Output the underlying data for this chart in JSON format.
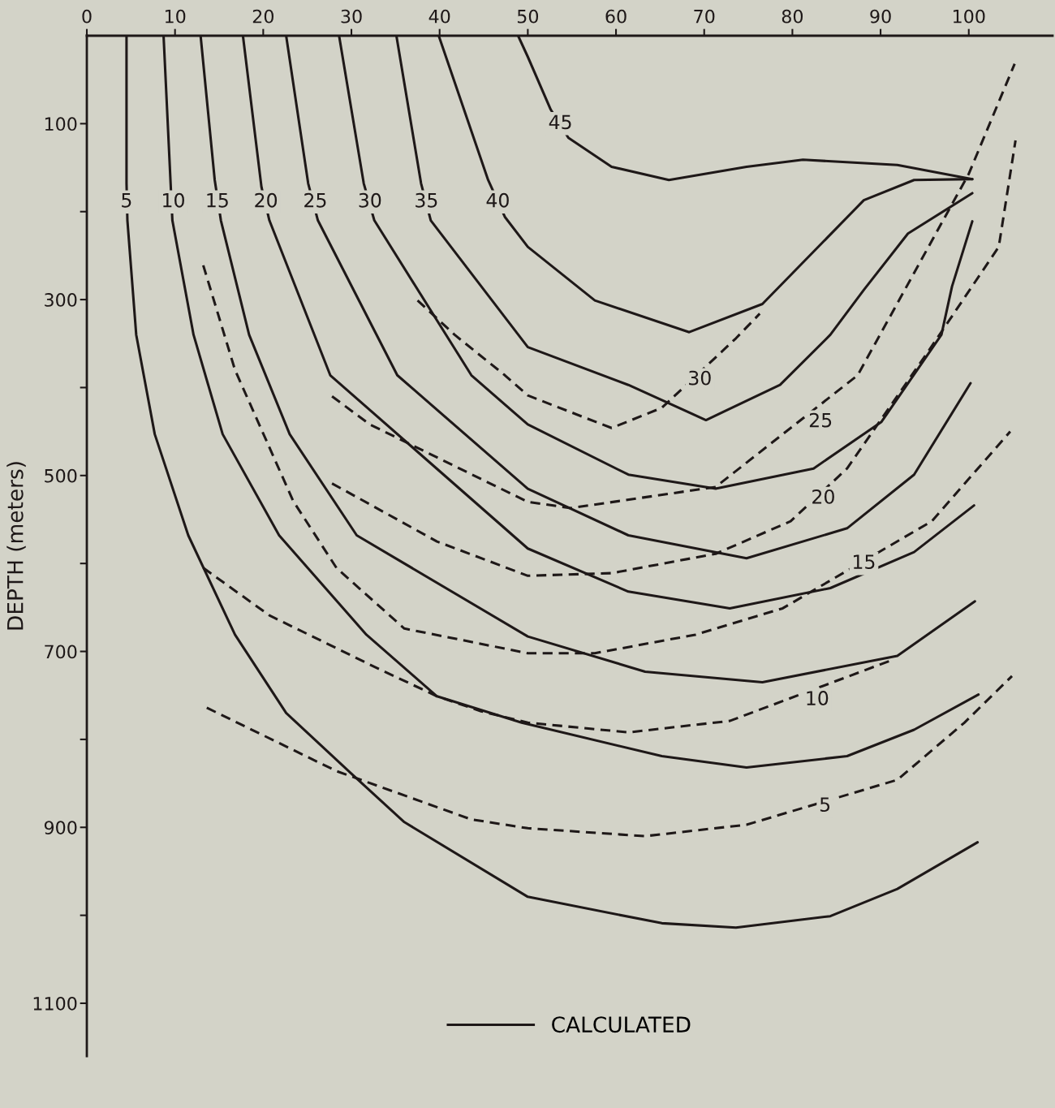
{
  "chart_data": {
    "type": "line",
    "ylabel": "DEPTH (meters)",
    "xlim": [
      0,
      109.5
    ],
    "xticks": [
      0,
      10,
      20,
      30,
      40,
      50,
      60,
      70,
      80,
      90,
      100
    ],
    "ylim": [
      1160,
      0
    ],
    "yticks": [
      100,
      {
        "value": 200,
        "label": null
      },
      300,
      {
        "value": 400,
        "label": null
      },
      500,
      {
        "value": 600,
        "label": null
      },
      700,
      {
        "value": 800,
        "label": null
      },
      900,
      {
        "value": 1000,
        "label": null
      },
      1100
    ],
    "grid": false,
    "legend": "bottom",
    "marker": "none",
    "series": [
      {
        "name": "CALCULATED",
        "color": "#1e1818",
        "line_style": "solid",
        "x": [
          4.5,
          4.5,
          4.6,
          5.6,
          7.7,
          11.5,
          16.8,
          22.6,
          29.9,
          36,
          50,
          65.2,
          73.6,
          84.3,
          91.9,
          101
        ],
        "values": [
          0,
          168,
          210,
          340,
          453,
          568,
          681,
          770,
          838,
          894,
          979,
          1009,
          1014,
          1001,
          970,
          917
        ]
      },
      {
        "color": "#1e1818",
        "line_style": "solid",
        "x": [
          8.7,
          9.5,
          9.7,
          12.1,
          15.4,
          21.8,
          31.7,
          39.7,
          49.3,
          65.2,
          74.8,
          86.2,
          93.8,
          101.1
        ],
        "values": [
          0,
          168,
          210,
          340,
          453,
          568,
          681,
          751,
          781,
          819,
          832,
          819,
          789,
          749
        ]
      },
      {
        "color": "#1e1818",
        "line_style": "solid",
        "x": [
          12.9,
          14.5,
          15.2,
          18.4,
          23,
          30.6,
          50,
          63.3,
          76.6,
          91.9,
          100.7
        ],
        "values": [
          0,
          164,
          210,
          340,
          453,
          568,
          683,
          723,
          735,
          705,
          643
        ]
      },
      {
        "color": "#1e1818",
        "line_style": "solid",
        "x": [
          17.7,
          19.8,
          20.7,
          27.6,
          50,
          61.4,
          72.9,
          84.3,
          93.8,
          100.6
        ],
        "values": [
          0,
          172,
          210,
          386,
          583,
          632,
          651,
          628,
          587,
          534
        ]
      },
      {
        "color": "#1e1818",
        "line_style": "solid",
        "x": [
          22.6,
          25.1,
          26.2,
          35.2,
          50,
          61.4,
          74.8,
          86.2,
          93.8,
          100.2
        ],
        "values": [
          0,
          168,
          210,
          386,
          515,
          568,
          594,
          560,
          499,
          395
        ]
      },
      {
        "color": "#1e1818",
        "line_style": "solid",
        "x": [
          28.6,
          31.4,
          32.6,
          43.6,
          50,
          61.4,
          71.3,
          82.4,
          90.1,
          96.9,
          98.1,
          100.4
        ],
        "values": [
          0,
          168,
          210,
          386,
          442,
          499,
          515,
          492,
          439,
          340,
          285,
          211
        ]
      },
      {
        "color": "#1e1818",
        "line_style": "solid",
        "x": [
          35.1,
          37.9,
          39,
          50,
          61.4,
          70.2,
          78.6,
          84.3,
          88.1,
          93.1,
          100.4
        ],
        "values": [
          0,
          168,
          210,
          354,
          397,
          437,
          397,
          340,
          289,
          225,
          179
        ]
      },
      {
        "color": "#1e1818",
        "line_style": "solid",
        "x": [
          39.9,
          45.5,
          47.4,
          50,
          57.6,
          68.3,
          76.6,
          88.1,
          93.8,
          100.4
        ],
        "values": [
          0,
          164,
          206,
          240,
          301,
          337,
          305,
          187,
          164,
          163
        ]
      },
      {
        "color": "#1e1818",
        "line_style": "solid",
        "x": [
          48.9,
          50,
          52.6,
          54.6,
          59.5,
          66,
          74.8,
          81.2,
          91.9,
          100.4
        ],
        "values": [
          0,
          24,
          84,
          116,
          149,
          164,
          149,
          141,
          147,
          163
        ]
      },
      {
        "color": "#1e1818",
        "line_style": "dashed",
        "x": [
          37.5,
          41.7,
          47.4,
          50,
          59.5,
          65.2,
          73.6,
          76.3
        ],
        "values": [
          301,
          340,
          386,
          409,
          446,
          423,
          344,
          316
        ]
      },
      {
        "color": "#1e1818",
        "line_style": "dashed",
        "x": [
          27.8,
          32.1,
          50,
          54.9,
          71.3,
          87.4,
          100,
          105.2
        ],
        "values": [
          410,
          442,
          530,
          537,
          513,
          386,
          157,
          32
        ]
      },
      {
        "color": "#1e1818",
        "line_style": "dashed",
        "x": [
          27.8,
          39.7,
          50,
          59.5,
          71.3,
          79.8,
          86.2,
          95.4,
          103.4,
          105.3
        ],
        "values": [
          509,
          575,
          614,
          611,
          589,
          552,
          492,
          359,
          240,
          119
        ]
      },
      {
        "color": "#1e1818",
        "line_style": "dashed",
        "x": [
          13.2,
          16.8,
          23.4,
          28.3,
          36,
          50,
          57.6,
          69,
          78.9,
          95.8,
          104.7
        ],
        "values": [
          261,
          380,
          529,
          605,
          674,
          702,
          702,
          681,
          651,
          552,
          450
        ]
      },
      {
        "color": "#1e1818",
        "line_style": "dashed",
        "x": [
          13.2,
          20.7,
          32.1,
          39.7,
          44.7,
          50,
          61.4,
          72.9,
          91.5
        ],
        "values": [
          605,
          659,
          715,
          751,
          768,
          781,
          792,
          779,
          709
        ]
      },
      {
        "color": "#1e1818",
        "line_style": "dashed",
        "x": [
          13.6,
          28.3,
          43.6,
          50,
          63.3,
          74.8,
          91.9,
          99.5,
          104.9
        ],
        "values": [
          764,
          836,
          891,
          901,
          910,
          897,
          846,
          781,
          728
        ]
      }
    ],
    "annotations": [
      {
        "text": "5",
        "x": 4.5,
        "y": 189
      },
      {
        "text": "10",
        "x": 9.8,
        "y": 189
      },
      {
        "text": "15",
        "x": 14.8,
        "y": 189
      },
      {
        "text": "20",
        "x": 20.3,
        "y": 189
      },
      {
        "text": "25",
        "x": 25.9,
        "y": 189
      },
      {
        "text": "30",
        "x": 32.1,
        "y": 189
      },
      {
        "text": "35",
        "x": 38.5,
        "y": 189
      },
      {
        "text": "40",
        "x": 46.6,
        "y": 189
      },
      {
        "text": "45",
        "x": 53.7,
        "y": 100
      },
      {
        "text": "30",
        "x": 69.5,
        "y": 391
      },
      {
        "text": "25",
        "x": 83.2,
        "y": 439
      },
      {
        "text": "20",
        "x": 83.5,
        "y": 526
      },
      {
        "text": "15",
        "x": 88.1,
        "y": 600
      },
      {
        "text": "10",
        "x": 82.8,
        "y": 755
      },
      {
        "text": "5",
        "x": 83.7,
        "y": 876
      }
    ]
  }
}
